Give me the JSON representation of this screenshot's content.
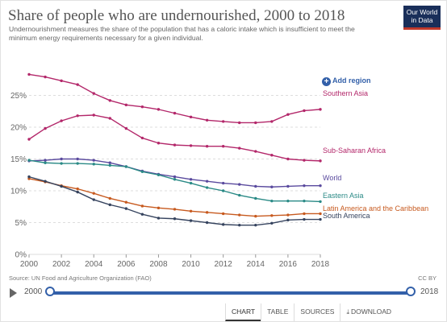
{
  "header": {
    "title": "Share of people who are undernourished, 2000 to 2018",
    "subtitle": "Undernourishment measures the share of the population that has a caloric intake which is insufficient to meet the minimum energy requirements necessary for a given individual.",
    "logo_line1": "Our World",
    "logo_line2": "in Data"
  },
  "controls": {
    "add_region_label": "Add region"
  },
  "footer": {
    "source": "Source: UN Food and Agriculture Organization (FAO)",
    "license": "CC BY",
    "timeline_start": "2000",
    "timeline_end": "2018"
  },
  "tabs": {
    "chart": "CHART",
    "table": "TABLE",
    "sources": "SOURCES",
    "download": "DOWNLOAD"
  },
  "colors": {
    "Sub-Saharan Africa": "#b3276a",
    "Southern Asia": "#b3276a",
    "World": "#5a4a9e",
    "Eastern Asia": "#2a8a86",
    "Latin America and the Caribbean": "#c75a1f",
    "South America": "#35435e"
  },
  "chart_data": {
    "type": "line",
    "x": [
      2000,
      2001,
      2002,
      2003,
      2004,
      2005,
      2006,
      2007,
      2008,
      2009,
      2010,
      2011,
      2012,
      2013,
      2014,
      2015,
      2016,
      2017,
      2018
    ],
    "ylim": [
      0,
      30
    ],
    "xlim": [
      2000,
      2018
    ],
    "y_ticks": [
      "0%",
      "5%",
      "10%",
      "15%",
      "20%",
      "25%"
    ],
    "x_ticks": [
      "2000",
      "2002",
      "2004",
      "2006",
      "2008",
      "2010",
      "2012",
      "2014",
      "2016",
      "2018"
    ],
    "grid": "horizontal dashed",
    "series": [
      {
        "name": "Sub-Saharan Africa",
        "values": [
          18.1,
          19.8,
          21.0,
          21.8,
          21.9,
          21.4,
          19.8,
          18.3,
          17.5,
          17.2,
          17.1,
          17.0,
          17.0,
          16.7,
          16.2,
          15.6,
          15.0,
          14.8,
          14.7
        ]
      },
      {
        "name": "Southern Asia",
        "values": [
          28.3,
          27.9,
          27.3,
          26.7,
          25.3,
          24.2,
          23.5,
          23.2,
          22.8,
          22.2,
          21.6,
          21.1,
          20.9,
          20.7,
          20.7,
          20.9,
          22.0,
          22.6,
          22.8
        ]
      },
      {
        "name": "World",
        "values": [
          14.7,
          14.8,
          15.0,
          15.0,
          14.8,
          14.4,
          13.8,
          13.1,
          12.6,
          12.2,
          11.8,
          11.5,
          11.2,
          11.0,
          10.7,
          10.6,
          10.7,
          10.8,
          10.8
        ]
      },
      {
        "name": "Eastern Asia",
        "values": [
          14.8,
          14.4,
          14.3,
          14.3,
          14.2,
          14.0,
          13.8,
          13.0,
          12.5,
          11.8,
          11.2,
          10.5,
          10.0,
          9.3,
          8.8,
          8.4,
          8.4,
          8.4,
          8.3
        ]
      },
      {
        "name": "Latin America and the Caribbean",
        "values": [
          11.9,
          11.4,
          10.8,
          10.3,
          9.6,
          8.8,
          8.2,
          7.6,
          7.3,
          7.1,
          6.8,
          6.6,
          6.4,
          6.2,
          6.0,
          6.1,
          6.2,
          6.4,
          6.4
        ]
      },
      {
        "name": "South America",
        "values": [
          12.2,
          11.5,
          10.7,
          9.8,
          8.6,
          7.8,
          7.2,
          6.3,
          5.7,
          5.6,
          5.3,
          5.0,
          4.7,
          4.6,
          4.6,
          4.9,
          5.4,
          5.5,
          5.5
        ]
      }
    ]
  }
}
